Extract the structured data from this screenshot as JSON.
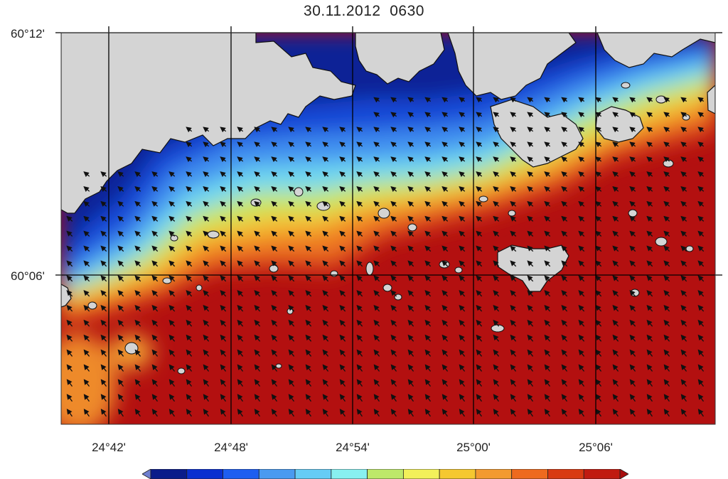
{
  "title": "30.11.2012  0630",
  "lat_labels": [
    "60°12'",
    "60°06'"
  ],
  "lon_labels": [
    "24°42'",
    "24°48'",
    "24°54'",
    "25°00'",
    "25°06'"
  ],
  "colors": {
    "land": "#d4d4d4",
    "ocean_deep": "#b01010",
    "scale": [
      "#6f7fd0",
      "#0a1c8a",
      "#0a2fd0",
      "#1e5ef0",
      "#4a9af0",
      "#66ccf5",
      "#88f0f0",
      "#bde86a",
      "#f2f05a",
      "#f5c830",
      "#f39a30",
      "#ee6a1e",
      "#d83a12",
      "#c01a10",
      "#a80c0c"
    ]
  },
  "icons": {
    "arrows": "current-arrow-icon"
  }
}
